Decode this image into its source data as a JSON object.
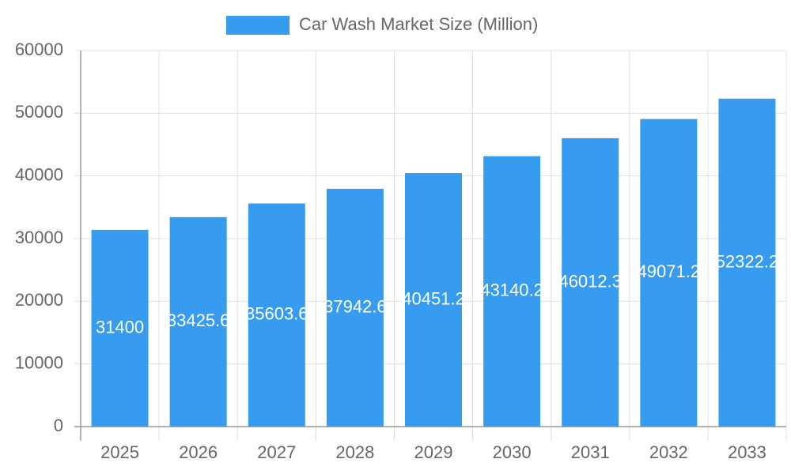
{
  "chart_data": {
    "type": "bar",
    "categories": [
      "2025",
      "2026",
      "2027",
      "2028",
      "2029",
      "2030",
      "2031",
      "2032",
      "2033"
    ],
    "series": [
      {
        "name": "Car Wash Market Size (Million)",
        "color": "#379cf0",
        "values": [
          31400,
          33425.6,
          35603.6,
          37942.6,
          40451.2,
          43140.2,
          46012.3,
          49071.2,
          52322.2
        ]
      }
    ],
    "ylim": [
      0,
      60000
    ],
    "yticks": [
      0,
      10000,
      20000,
      30000,
      40000,
      50000,
      60000
    ],
    "grid": true,
    "legend": "top"
  }
}
